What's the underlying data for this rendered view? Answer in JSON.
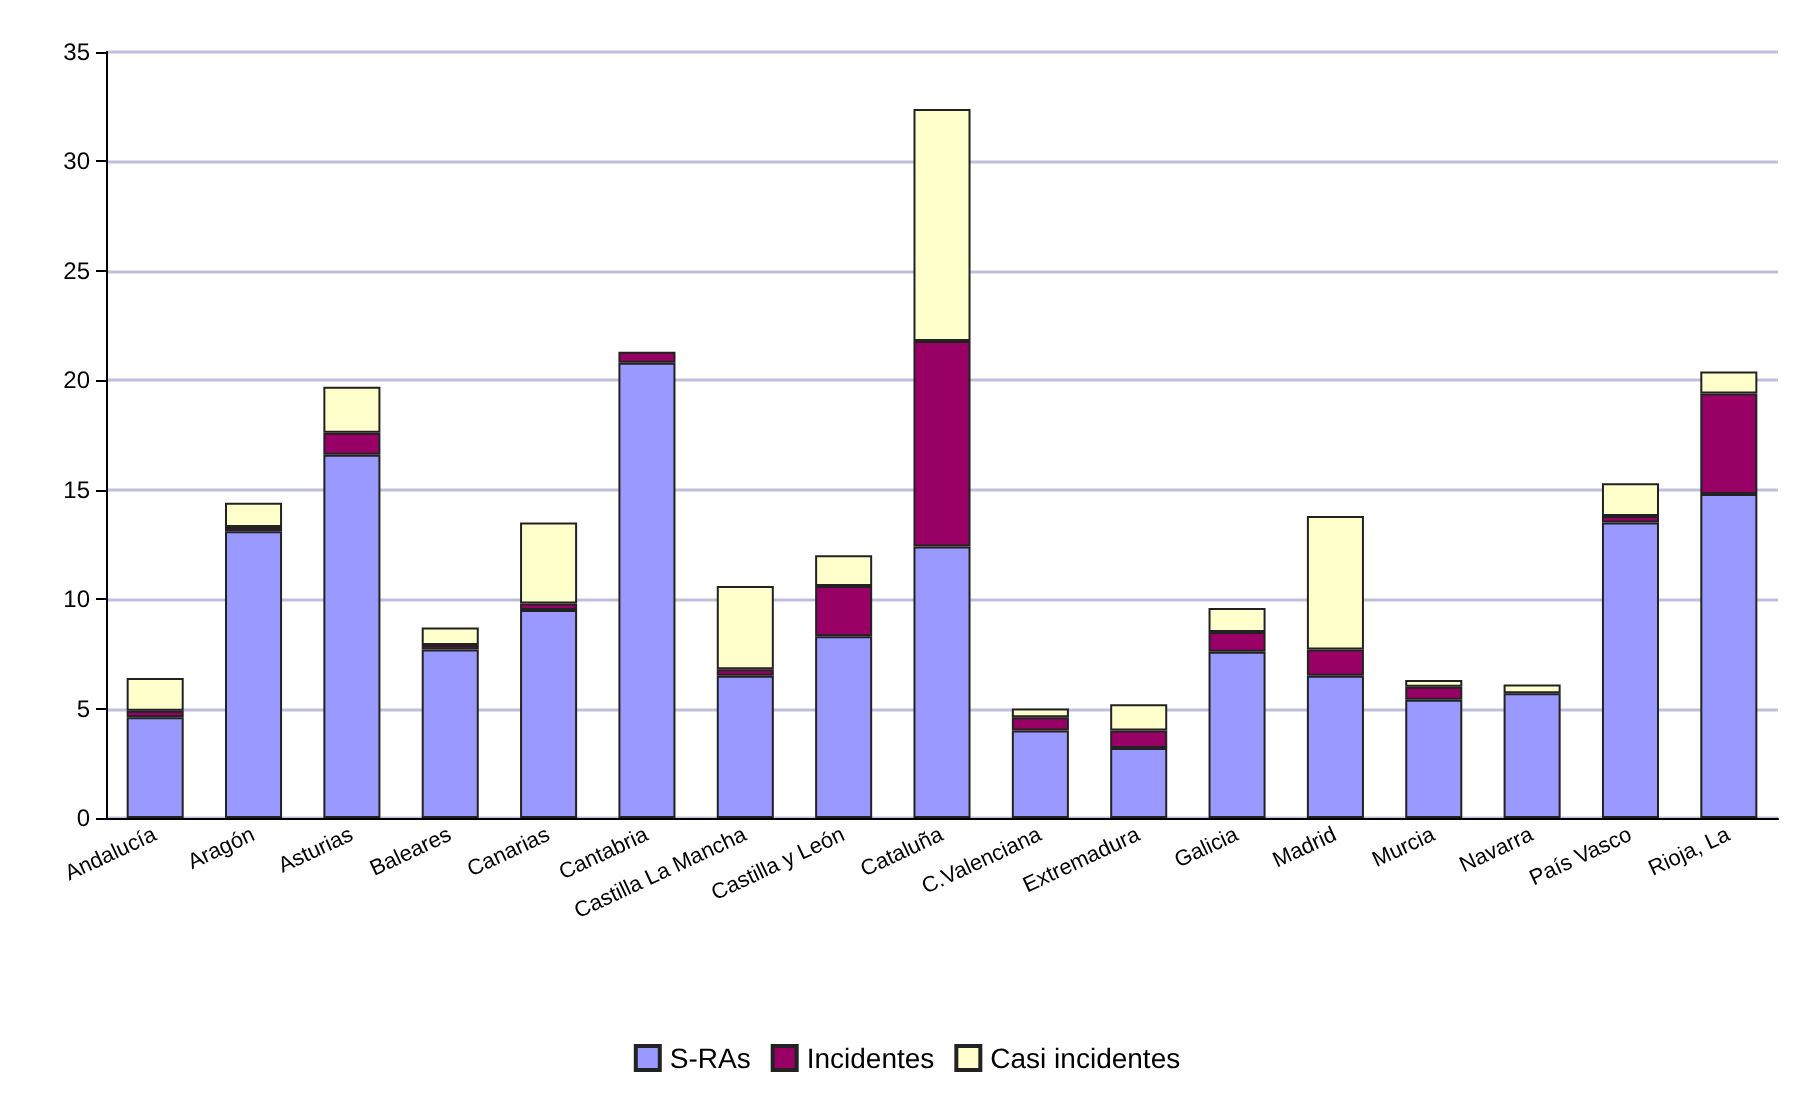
{
  "chart_data": {
    "type": "bar",
    "stacked": true,
    "categories": [
      "Andalucía",
      "Aragón",
      "Asturias",
      "Baleares",
      "Canarias",
      "Cantabria",
      "Castilla La Mancha",
      "Castilla y León",
      "Cataluña",
      "C.Valenciana",
      "Extremadura",
      "Galicia",
      "Madrid",
      "Murcia",
      "Navarra",
      "País Vasco",
      "Rioja, La"
    ],
    "series": [
      {
        "name": "S-RAs",
        "color": "#9999ff",
        "values": [
          4.6,
          13.1,
          16.6,
          7.7,
          9.5,
          20.8,
          6.5,
          8.3,
          12.4,
          4.0,
          3.2,
          7.6,
          6.5,
          5.4,
          5.7,
          13.5,
          14.8
        ]
      },
      {
        "name": "Incidentes",
        "color": "#990066",
        "values": [
          0.3,
          0.2,
          1.0,
          0.2,
          0.3,
          0.5,
          0.3,
          2.3,
          9.4,
          0.6,
          0.8,
          0.9,
          1.2,
          0.6,
          0,
          0.3,
          4.6
        ]
      },
      {
        "name": "Casi incidentes",
        "color": "#ffffcc",
        "values": [
          1.5,
          1.1,
          2.1,
          0.8,
          3.7,
          0,
          3.8,
          1.4,
          10.6,
          0.4,
          1.2,
          1.1,
          6.1,
          0.3,
          0.4,
          1.5,
          1.0
        ]
      }
    ],
    "ylim": [
      0,
      35
    ],
    "yticks": [
      0,
      5,
      10,
      15,
      20,
      25,
      30,
      35
    ],
    "grid": "y",
    "legend": "bottom"
  }
}
